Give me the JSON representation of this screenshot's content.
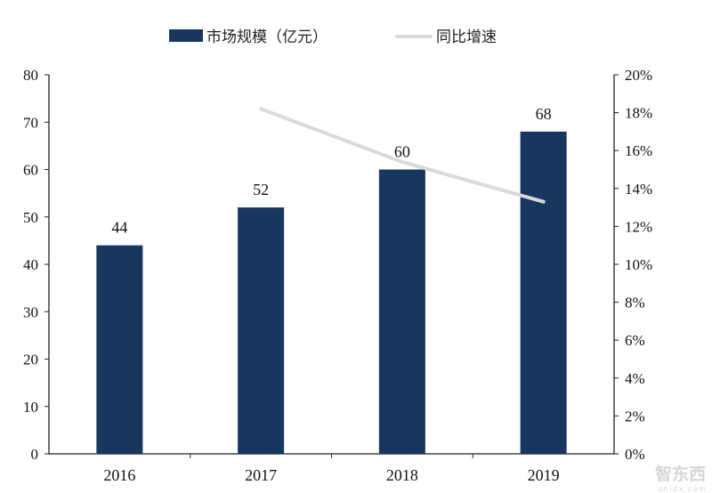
{
  "chart_data": {
    "type": "bar+line",
    "categories": [
      "2016",
      "2017",
      "2018",
      "2019"
    ],
    "series": [
      {
        "name": "市场规模（亿元）",
        "type": "bar",
        "axis": "left",
        "values": [
          44,
          52,
          60,
          68
        ],
        "color": "#17375e",
        "data_labels": [
          "44",
          "52",
          "60",
          "68"
        ]
      },
      {
        "name": "同比增速",
        "type": "line",
        "axis": "right",
        "values": [
          null,
          18.2,
          15.4,
          13.3
        ],
        "color": "#d9d9d9"
      }
    ],
    "left_axis": {
      "ylim": [
        0,
        80
      ],
      "ticks": [
        "0",
        "10",
        "20",
        "30",
        "40",
        "50",
        "60",
        "70",
        "80"
      ]
    },
    "right_axis": {
      "ylim": [
        0,
        20
      ],
      "ticks": [
        "0%",
        "2%",
        "4%",
        "6%",
        "8%",
        "10%",
        "12%",
        "14%",
        "16%",
        "18%",
        "20%"
      ]
    },
    "legend_placement": "top",
    "grid": false
  },
  "watermark": {
    "text": "智东西",
    "subtext": "zhidx.com"
  }
}
